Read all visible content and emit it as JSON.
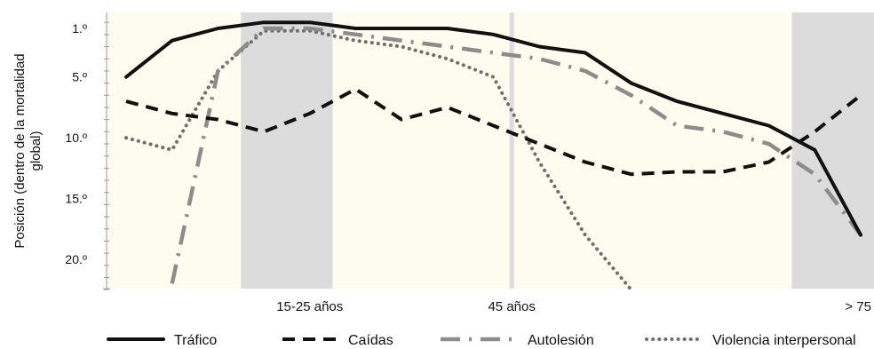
{
  "chart_data": {
    "type": "line",
    "ylabel": "Posición (dentro de la mortalidad global)",
    "y_inverted": true,
    "ylim": [
      0.5,
      22.5
    ],
    "xlim": [
      1,
      17
    ],
    "y_ticks": [
      {
        "value": 1,
        "label": "1.º"
      },
      {
        "value": 5,
        "label": "5.º"
      },
      {
        "value": 10,
        "label": "10.º"
      },
      {
        "value": 15,
        "label": "15.º"
      },
      {
        "value": 20,
        "label": "20.º"
      }
    ],
    "x_labels": [
      {
        "value": 5,
        "label": "15-25 años"
      },
      {
        "value": 9.4,
        "label": "45 años"
      },
      {
        "value": 17.3,
        "label": "> 75 años"
      }
    ],
    "shaded_regions": [
      {
        "from": 3.5,
        "to": 5.5
      },
      {
        "from": 9.35,
        "to": 9.45
      },
      {
        "from": 15.5,
        "to": 17.5
      }
    ],
    "colors": {
      "background": "#fdfcee",
      "shade": "#dcdcdc",
      "line_dark": "#111111",
      "line_gray": "#8c8c8c",
      "line_dotted": "#6e6e6e"
    },
    "x": [
      1,
      2,
      3,
      4,
      5,
      6,
      7,
      8,
      9,
      10,
      11,
      12,
      13,
      14,
      15,
      16,
      17
    ],
    "series": [
      {
        "name": "Tráfico",
        "style": "solid",
        "values": [
          5,
          2,
          1,
          0.5,
          0.5,
          1,
          1,
          1,
          1.5,
          2.5,
          3,
          5.5,
          7,
          8,
          9,
          11,
          18
        ]
      },
      {
        "name": "Caídas",
        "style": "dashed",
        "values": [
          7,
          8,
          8.5,
          9.5,
          8,
          6,
          8.5,
          7.5,
          9,
          10.5,
          12,
          13,
          12.8,
          12.8,
          12,
          9.5,
          6.5
        ]
      },
      {
        "name": "Autolesión",
        "style": "dashdot",
        "values": [
          null,
          22,
          4.5,
          1,
          1,
          1.5,
          2,
          2.5,
          3,
          3.5,
          4.5,
          6.5,
          9,
          9.5,
          10.5,
          13,
          18
        ]
      },
      {
        "name": "Violencia interpersonal",
        "style": "dotted",
        "values": [
          10,
          11,
          4.5,
          1.2,
          1.2,
          2,
          2.5,
          3.5,
          5,
          12,
          18,
          22.5,
          null,
          null,
          null,
          null,
          null
        ]
      }
    ]
  }
}
